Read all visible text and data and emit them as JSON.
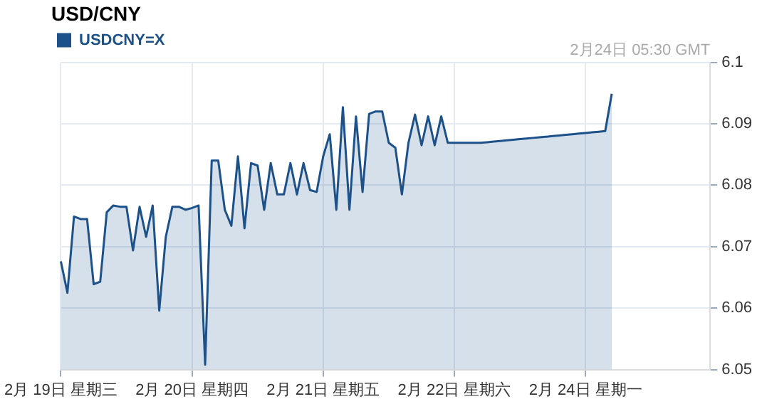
{
  "chart_data": {
    "type": "area",
    "title": "USD/CNY",
    "annotations": [
      "2月24日 05:30 GMT"
    ],
    "categories": [
      "2月 19日 星期三",
      null,
      null,
      null,
      null,
      null,
      null,
      null,
      null,
      null,
      null,
      null,
      null,
      null,
      null,
      null,
      null,
      null,
      null,
      null,
      "2月 20日 星期四",
      null,
      null,
      null,
      null,
      null,
      null,
      null,
      null,
      null,
      null,
      null,
      null,
      null,
      null,
      null,
      null,
      null,
      null,
      null,
      "2月 21日 星期五",
      null,
      null,
      null,
      null,
      null,
      null,
      null,
      null,
      null,
      null,
      null,
      null,
      null,
      null,
      null,
      null,
      null,
      null,
      null,
      "2月 22日 星期六",
      null,
      null,
      null,
      null,
      null,
      null,
      null,
      null,
      null,
      null,
      null,
      null,
      null,
      null,
      null,
      null,
      null,
      null,
      null,
      "2月 24日 星期一",
      null,
      null,
      null,
      null,
      null,
      null,
      null,
      null,
      null,
      null,
      null,
      null,
      null,
      null,
      null,
      null,
      null,
      null,
      null
    ],
    "series": [
      {
        "name": "USDCNY=X",
        "color": "#1c5189",
        "values": [
          6.0676,
          6.0625,
          6.0749,
          6.0745,
          6.0745,
          6.0639,
          6.0643,
          6.0756,
          6.0767,
          6.0765,
          6.0765,
          6.0694,
          6.0765,
          6.0716,
          6.0767,
          6.0596,
          6.0716,
          6.0765,
          6.0765,
          6.076,
          6.0763,
          6.0767,
          6.0508,
          6.084,
          6.084,
          6.076,
          6.0734,
          6.0847,
          6.073,
          6.0836,
          6.0832,
          6.076,
          6.0836,
          6.0785,
          6.0785,
          6.0836,
          6.0785,
          6.0836,
          6.0792,
          6.0789,
          6.0847,
          6.0883,
          6.076,
          6.0927,
          6.076,
          6.0912,
          6.0789,
          6.0916,
          6.092,
          6.092,
          6.0869,
          6.0861,
          6.0785,
          6.0869,
          6.0915,
          6.0865,
          6.0912,
          6.0865,
          6.0912,
          6.0869,
          6.0869,
          6.0869,
          6.0869,
          6.0869,
          6.0869,
          6.087,
          6.0871,
          6.0872,
          6.0873,
          6.0874,
          6.0875,
          6.0876,
          6.0877,
          6.0878,
          6.0879,
          6.088,
          6.0881,
          6.0882,
          6.0883,
          6.0884,
          6.0885,
          6.0886,
          6.0887,
          6.0888,
          6.0949,
          null,
          null,
          null,
          null,
          null,
          null,
          null,
          null,
          null,
          null,
          null,
          null,
          null,
          null,
          null
        ]
      }
    ],
    "ylim": [
      6.05,
      6.1
    ],
    "yticks": [
      6.05,
      6.06,
      6.07,
      6.08,
      6.09,
      6.1
    ],
    "grid": true,
    "legend": "top left"
  }
}
